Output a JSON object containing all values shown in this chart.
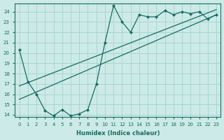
{
  "xlabel": "Humidex (Indice chaleur)",
  "bg_color": "#cceae8",
  "grid_color": "#aad5d2",
  "line_color": "#1a6b60",
  "xlim": [
    -0.5,
    23.5
  ],
  "ylim": [
    13.8,
    24.8
  ],
  "yticks": [
    14,
    15,
    16,
    17,
    18,
    19,
    20,
    21,
    22,
    23,
    24
  ],
  "xticks": [
    0,
    1,
    2,
    3,
    4,
    5,
    6,
    7,
    8,
    9,
    10,
    11,
    12,
    13,
    14,
    15,
    16,
    17,
    18,
    19,
    20,
    21,
    22,
    23
  ],
  "line1_x": [
    0,
    1,
    2,
    3,
    4,
    5,
    6,
    7,
    8,
    9,
    10,
    11,
    12,
    13,
    14,
    15,
    16,
    17,
    18,
    19,
    20,
    21,
    22,
    23
  ],
  "line1_y": [
    20.3,
    17.2,
    16.0,
    14.4,
    13.9,
    14.5,
    13.9,
    14.1,
    14.5,
    17.0,
    21.0,
    24.6,
    23.0,
    22.0,
    23.7,
    23.5,
    23.5,
    24.1,
    23.7,
    24.0,
    23.8,
    24.0,
    23.3,
    23.7
  ],
  "line2_x": [
    0,
    23
  ],
  "line2_y": [
    16.8,
    24.2
  ],
  "line3_x": [
    0,
    23
  ],
  "line3_y": [
    15.5,
    23.7
  ]
}
